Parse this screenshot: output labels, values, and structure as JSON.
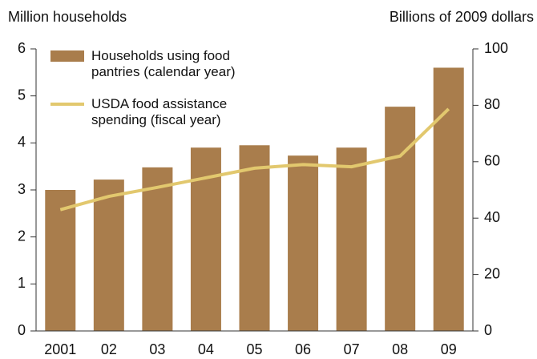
{
  "chart_data": {
    "type": "bar_line",
    "y_label": "Million households",
    "y2_label": "Billions of 2009 dollars",
    "categories": [
      "2001",
      "02",
      "03",
      "04",
      "05",
      "06",
      "07",
      "08",
      "09"
    ],
    "series": [
      {
        "name": "Households using food pantries (calendar year)",
        "type": "bar",
        "color": "#a97d4c",
        "values": [
          3.0,
          3.22,
          3.48,
          3.9,
          3.95,
          3.73,
          3.9,
          4.77,
          5.6
        ]
      },
      {
        "name": "USDA food assistance spending (fiscal year)",
        "type": "line",
        "axis": "y2",
        "color": "#e2c86e",
        "values": [
          43,
          47.7,
          50.9,
          54.3,
          57.7,
          59,
          58.2,
          62,
          78.7
        ]
      }
    ],
    "ylim": [
      0,
      6
    ],
    "yticks": [
      0,
      1,
      2,
      3,
      4,
      5,
      6
    ],
    "y2lim": [
      0,
      100
    ],
    "y2ticks": [
      0,
      20,
      40,
      60,
      80,
      100
    ]
  }
}
